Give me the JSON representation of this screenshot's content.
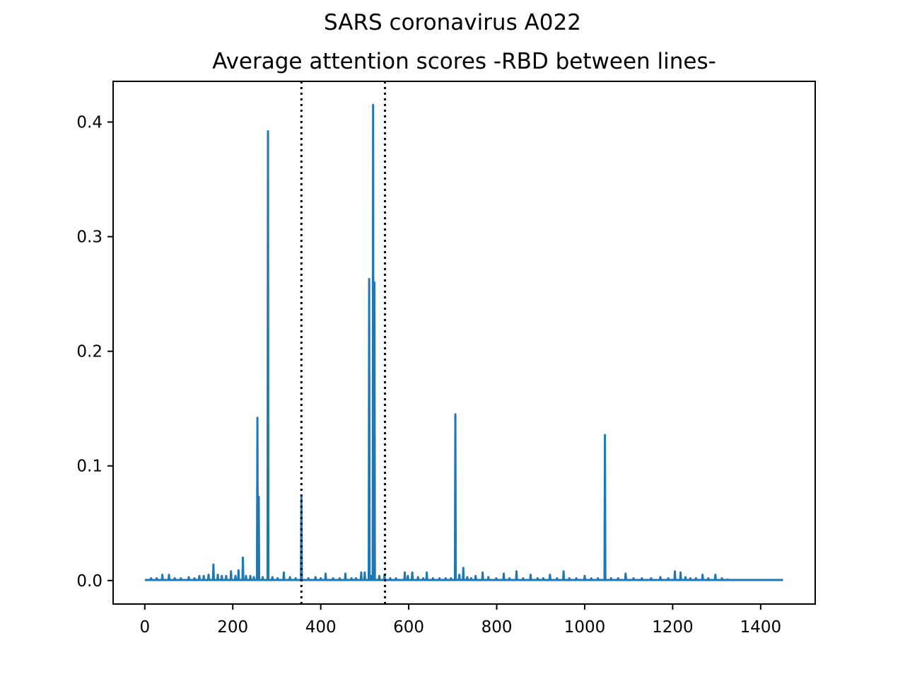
{
  "chart_data": {
    "type": "line",
    "suptitle": "SARS coronavirus A022",
    "title": "Average attention scores -RBD between lines-",
    "xlabel": "",
    "ylabel": "",
    "xlim": [
      -72,
      1524
    ],
    "ylim": [
      -0.0205,
      0.4355
    ],
    "xticks": [
      0,
      200,
      400,
      600,
      800,
      1000,
      1200,
      1400
    ],
    "xtick_labels": [
      "0",
      "200",
      "400",
      "600",
      "800",
      "1000",
      "1200",
      "1400"
    ],
    "yticks": [
      0.0,
      0.1,
      0.2,
      0.3,
      0.4
    ],
    "ytick_labels": [
      "0.0",
      "0.1",
      "0.2",
      "0.3",
      "0.4"
    ],
    "grid": false,
    "series": [
      {
        "color": "#1f77b4",
        "baseline": 0.0005,
        "length": 1452,
        "peaks": [
          [
            14,
            0.002
          ],
          [
            27,
            0.002
          ],
          [
            40,
            0.005
          ],
          [
            55,
            0.005
          ],
          [
            68,
            0.002
          ],
          [
            82,
            0.002
          ],
          [
            100,
            0.003
          ],
          [
            113,
            0.002
          ],
          [
            124,
            0.004
          ],
          [
            134,
            0.004
          ],
          [
            145,
            0.005
          ],
          [
            156,
            0.014
          ],
          [
            166,
            0.005
          ],
          [
            175,
            0.004
          ],
          [
            185,
            0.004
          ],
          [
            196,
            0.008
          ],
          [
            206,
            0.004
          ],
          [
            213,
            0.009
          ],
          [
            223,
            0.02
          ],
          [
            230,
            0.004
          ],
          [
            240,
            0.004
          ],
          [
            248,
            0.003
          ],
          [
            256,
            0.142
          ],
          [
            259,
            0.073
          ],
          [
            268,
            0.003
          ],
          [
            280,
            0.392
          ],
          [
            290,
            0.003
          ],
          [
            302,
            0.002
          ],
          [
            316,
            0.007
          ],
          [
            330,
            0.003
          ],
          [
            343,
            0.002
          ],
          [
            356,
            0.074
          ],
          [
            372,
            0.002
          ],
          [
            388,
            0.003
          ],
          [
            400,
            0.002
          ],
          [
            411,
            0.006
          ],
          [
            428,
            0.002
          ],
          [
            443,
            0.002
          ],
          [
            456,
            0.006
          ],
          [
            470,
            0.002
          ],
          [
            480,
            0.002
          ],
          [
            492,
            0.007
          ],
          [
            500,
            0.007
          ],
          [
            510,
            0.263
          ],
          [
            515,
            0.004
          ],
          [
            519,
            0.415
          ],
          [
            522,
            0.26
          ],
          [
            533,
            0.004
          ],
          [
            545,
            0.005
          ],
          [
            558,
            0.002
          ],
          [
            571,
            0.002
          ],
          [
            591,
            0.007
          ],
          [
            598,
            0.004
          ],
          [
            608,
            0.007
          ],
          [
            621,
            0.003
          ],
          [
            633,
            0.002
          ],
          [
            641,
            0.007
          ],
          [
            655,
            0.002
          ],
          [
            670,
            0.002
          ],
          [
            684,
            0.002
          ],
          [
            696,
            0.002
          ],
          [
            706,
            0.145
          ],
          [
            715,
            0.005
          ],
          [
            724,
            0.011
          ],
          [
            733,
            0.003
          ],
          [
            742,
            0.002
          ],
          [
            752,
            0.004
          ],
          [
            768,
            0.007
          ],
          [
            781,
            0.003
          ],
          [
            799,
            0.002
          ],
          [
            816,
            0.006
          ],
          [
            829,
            0.002
          ],
          [
            845,
            0.008
          ],
          [
            860,
            0.002
          ],
          [
            877,
            0.005
          ],
          [
            893,
            0.002
          ],
          [
            906,
            0.002
          ],
          [
            921,
            0.005
          ],
          [
            937,
            0.002
          ],
          [
            952,
            0.008
          ],
          [
            965,
            0.002
          ],
          [
            981,
            0.002
          ],
          [
            1000,
            0.004
          ],
          [
            1015,
            0.002
          ],
          [
            1030,
            0.002
          ],
          [
            1046,
            0.127
          ],
          [
            1060,
            0.002
          ],
          [
            1076,
            0.002
          ],
          [
            1093,
            0.006
          ],
          [
            1111,
            0.002
          ],
          [
            1130,
            0.002
          ],
          [
            1151,
            0.002
          ],
          [
            1172,
            0.003
          ],
          [
            1190,
            0.002
          ],
          [
            1205,
            0.008
          ],
          [
            1218,
            0.007
          ],
          [
            1229,
            0.003
          ],
          [
            1240,
            0.002
          ],
          [
            1253,
            0.002
          ],
          [
            1268,
            0.005
          ],
          [
            1281,
            0.002
          ],
          [
            1297,
            0.005
          ],
          [
            1312,
            0.002
          ],
          [
            1325,
            0.001
          ]
        ]
      }
    ],
    "rbd_lines": [
      {
        "x": 356,
        "color": "#000000",
        "style": "dotted"
      },
      {
        "x": 546,
        "color": "#000000",
        "style": "dotted"
      }
    ]
  }
}
